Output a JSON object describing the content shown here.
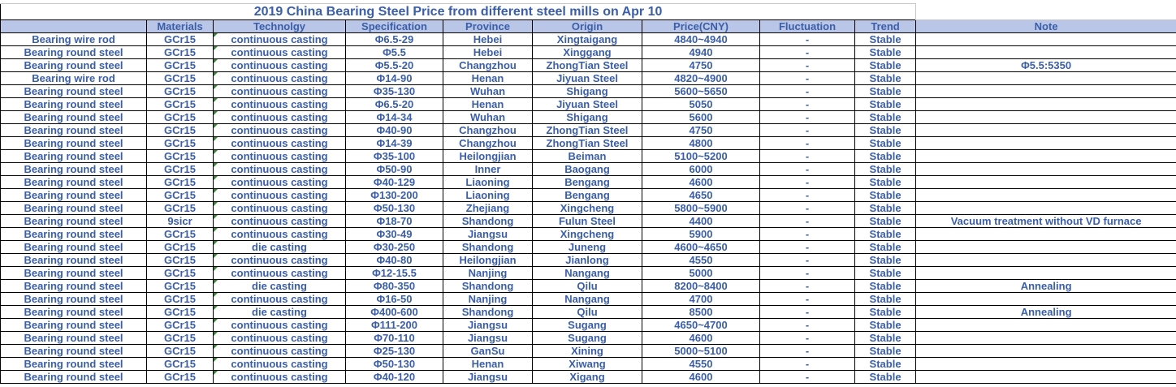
{
  "title": "2019 China Bearing Steel Price from different steel mills on Apr 10",
  "columns": [
    "",
    "Materials",
    "Technolgy",
    "Specification",
    "Province",
    "Origin",
    "Price(CNY)",
    "Fluctuation",
    "Trend",
    "Note"
  ],
  "column_keys": [
    "product",
    "materials",
    "technology",
    "specification",
    "province",
    "origin",
    "price",
    "fluctuation",
    "trend",
    "note"
  ],
  "rows": [
    [
      "Bearing wire rod",
      "GCr15",
      "continuous casting",
      "Φ6.5-29",
      "Hebei",
      "Xingtaigang",
      "4840~4940",
      "-",
      "Stable",
      ""
    ],
    [
      "Bearing round steel",
      "GCr15",
      "continuous casting",
      "Φ5.5",
      "Hebei",
      "Xinggang",
      "4940",
      "-",
      "Stable",
      ""
    ],
    [
      "Bearing round steel",
      "GCr15",
      "continuous casting",
      "Φ5.5-20",
      "Changzhou",
      "ZhongTian Steel",
      "4750",
      "-",
      "Stable",
      "Φ5.5:5350"
    ],
    [
      "Bearing wire rod",
      "GCr15",
      "continuous casting",
      "Φ14-90",
      "Henan",
      "Jiyuan Steel",
      "4820~4900",
      "-",
      "Stable",
      ""
    ],
    [
      "Bearing round steel",
      "GCr15",
      "continuous casting",
      "Φ35-130",
      "Wuhan",
      "Shigang",
      "5600~5650",
      "-",
      "Stable",
      ""
    ],
    [
      "Bearing round steel",
      "GCr15",
      "continuous casting",
      "Φ6.5-20",
      "Henan",
      "Jiyuan Steel",
      "5050",
      "-",
      "Stable",
      ""
    ],
    [
      "Bearing round steel",
      "GCr15",
      "continuous casting",
      "Φ14-34",
      "Wuhan",
      "Shigang",
      "5600",
      "-",
      "Stable",
      ""
    ],
    [
      "Bearing round steel",
      "GCr15",
      "continuous casting",
      "Φ40-90",
      "Changzhou",
      "ZhongTian Steel",
      "4750",
      "-",
      "Stable",
      ""
    ],
    [
      "Bearing round steel",
      "GCr15",
      "continuous casting",
      "Φ14-39",
      "Changzhou",
      "ZhongTian Steel",
      "4800",
      "-",
      "Stable",
      ""
    ],
    [
      "Bearing round steel",
      "GCr15",
      "continuous casting",
      "Φ35-100",
      "Heilongjian",
      "Beiman",
      "5100~5200",
      "-",
      "Stable",
      ""
    ],
    [
      "Bearing round steel",
      "GCr15",
      "continuous casting",
      "Φ50-90",
      "Inner",
      "Baogang",
      "6000",
      "-",
      "Stable",
      ""
    ],
    [
      "Bearing round steel",
      "GCr15",
      "continuous casting",
      "Φ40-129",
      "Liaoning",
      "Bengang",
      "4600",
      "-",
      "Stable",
      ""
    ],
    [
      "Bearing round steel",
      "GCr15",
      "continuous casting",
      "Φ130-200",
      "Liaoning",
      "Bengang",
      "4650",
      "-",
      "Stable",
      ""
    ],
    [
      "Bearing round steel",
      "GCr15",
      "continuous casting",
      "Φ50-130",
      "Zhejiang",
      "Xingcheng",
      "5800~5900",
      "-",
      "Stable",
      ""
    ],
    [
      "Bearing round steel",
      "9sicr",
      "continuous casting",
      "Φ18-70",
      "Shandong",
      "Fulun Steel",
      "4400",
      "-",
      "Stable",
      "Vacuum treatment without VD furnace"
    ],
    [
      "Bearing round steel",
      "GCr15",
      "continuous casting",
      "Φ30-49",
      "Jiangsu",
      "Xingcheng",
      "5900",
      "-",
      "Stable",
      ""
    ],
    [
      "Bearing round steel",
      "GCr15",
      "die casting",
      "Φ30-250",
      "Shandong",
      "Juneng",
      "4600~4650",
      "-",
      "Stable",
      ""
    ],
    [
      "Bearing round steel",
      "GCr15",
      "continuous casting",
      "Φ40-80",
      "Heilongjian",
      "Jianlong",
      "4550",
      "-",
      "Stable",
      ""
    ],
    [
      "Bearing round steel",
      "GCr15",
      "continuous casting",
      "Φ12-15.5",
      "Nanjing",
      "Nangang",
      "5000",
      "-",
      "Stable",
      ""
    ],
    [
      "Bearing round steel",
      "GCr15",
      "die casting",
      "Φ80-350",
      "Shandong",
      "Qilu",
      "8200~8400",
      "-",
      "Stable",
      "Annealing"
    ],
    [
      "Bearing round steel",
      "GCr15",
      "continuous casting",
      "Φ16-50",
      "Nanjing",
      "Nangang",
      "4700",
      "-",
      "Stable",
      ""
    ],
    [
      "Bearing round steel",
      "GCr15",
      "die casting",
      "Φ400-600",
      "Shandong",
      "Qilu",
      "8500",
      "-",
      "Stable",
      "Annealing"
    ],
    [
      "Bearing round steel",
      "GCr15",
      "continuous casting",
      "Φ111-200",
      "Jiangsu",
      "Sugang",
      "4650~4700",
      "-",
      "Stable",
      ""
    ],
    [
      "Bearing round steel",
      "GCr15",
      "continuous casting",
      "Φ70-110",
      "Jiangsu",
      "Sugang",
      "4600",
      "-",
      "Stable",
      ""
    ],
    [
      "Bearing round steel",
      "GCr15",
      "continuous casting",
      "Φ25-130",
      "GanSu",
      "Xining",
      "5000~5100",
      "-",
      "Stable",
      ""
    ],
    [
      "Bearing round steel",
      "GCr15",
      "continuous casting",
      "Φ50-130",
      "Henan",
      "Xiwang",
      "4550",
      "-",
      "Stable",
      ""
    ],
    [
      "Bearing round steel",
      "GCr15",
      "continuous casting",
      "Φ40-120",
      "Jiangsu",
      "Xigang",
      "4600",
      "-",
      "Stable",
      ""
    ]
  ],
  "comment_marker": "green-triangle",
  "colors": {
    "header_fill": "#b9c6e7",
    "text_blue": "#3a5ea8",
    "grid_border": "#000000",
    "faint_gridline": "#c6c6c6",
    "comment_triangle_green": "#2e8b2e"
  }
}
